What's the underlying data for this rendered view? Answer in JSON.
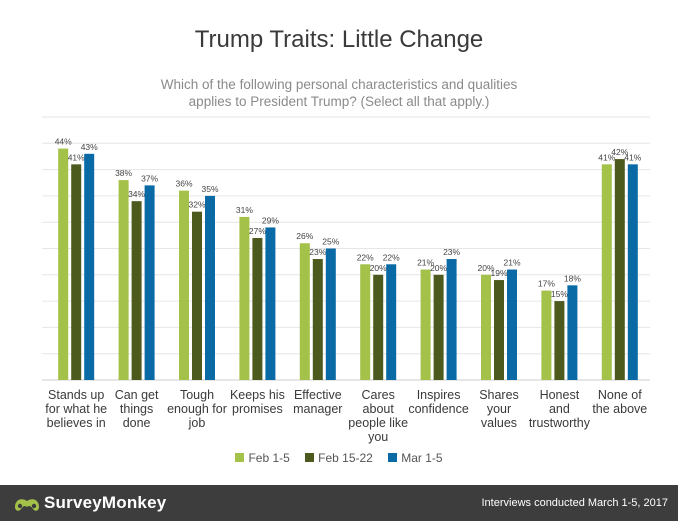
{
  "title": "Trump Traits: Little Change",
  "subtitle_lines": [
    "Which of the following personal characteristics and qualities",
    "applies to President Trump? (Select all that apply.)"
  ],
  "colors": {
    "feb1": "#a4c14a",
    "feb15": "#4c5a1d",
    "mar1": "#0a6aa6",
    "grid": "#e6e6e6",
    "axis": "#cccccc"
  },
  "chart_data": {
    "type": "bar",
    "categories": [
      [
        "Stands up",
        "for what he",
        "believes in"
      ],
      [
        "Can get",
        "things",
        "done"
      ],
      [
        "Tough",
        "enough for",
        "job"
      ],
      [
        "Keeps his",
        "promises"
      ],
      [
        "Effective",
        "manager"
      ],
      [
        "Cares",
        "about",
        "people like",
        "you"
      ],
      [
        "Inspires",
        "confidence"
      ],
      [
        "Shares",
        "your",
        "values"
      ],
      [
        "Honest",
        "and",
        "trustworthy"
      ],
      [
        "None of",
        "the above"
      ]
    ],
    "series": [
      {
        "name": "Feb 1-5",
        "values": [
          44,
          38,
          36,
          31,
          26,
          22,
          21,
          20,
          17,
          41
        ],
        "labels": [
          "44%",
          "38%",
          "36%",
          "31%",
          "26%",
          "22%",
          "21%",
          "20%",
          "17%",
          "41%"
        ]
      },
      {
        "name": "Feb 15-22",
        "values": [
          41,
          34,
          32,
          27,
          23,
          20,
          20,
          19,
          15,
          42
        ],
        "labels": [
          "41%",
          "34%",
          "32%",
          "27%",
          "23%",
          "20%",
          "20%",
          "19%",
          "15%",
          "42%"
        ]
      },
      {
        "name": "Mar 1-5",
        "values": [
          43,
          37,
          35,
          29,
          25,
          22,
          23,
          21,
          18,
          41
        ],
        "labels": [
          "43%",
          "37%",
          "35%",
          "29%",
          "25%",
          "22%",
          "23%",
          "21%",
          "18%",
          "41%"
        ]
      }
    ],
    "ylim": [
      0,
      50
    ],
    "grid": true,
    "legend": "bottom"
  },
  "footer": {
    "brand": "SurveyMonkey",
    "note": "Interviews conducted March 1-5, 2017"
  }
}
